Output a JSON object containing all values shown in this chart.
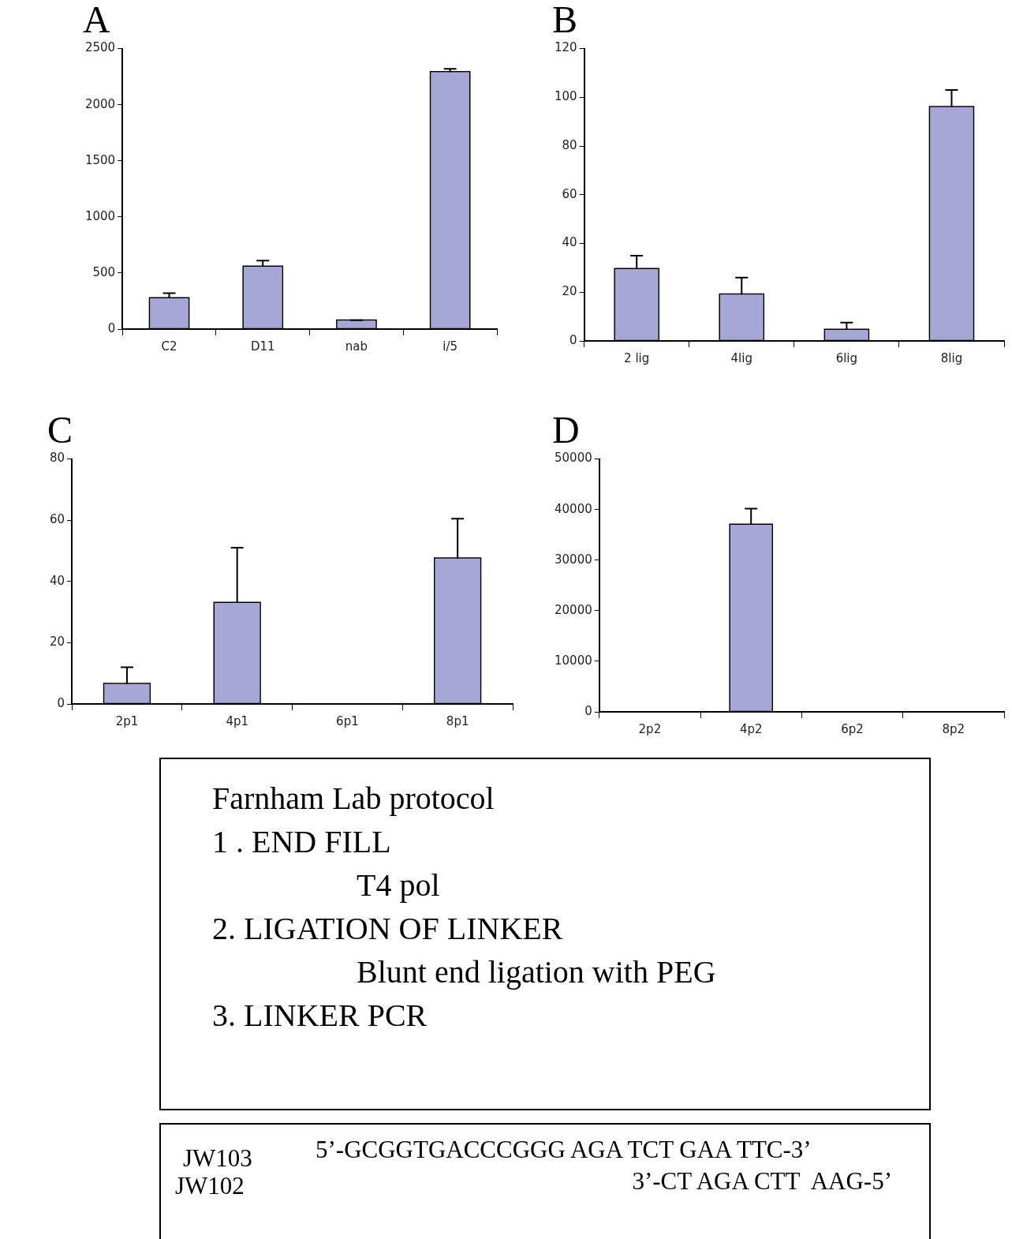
{
  "chart_data": [
    {
      "type": "bar",
      "title": "A",
      "categories": [
        "C2",
        "D11",
        "nab",
        "i/5"
      ],
      "values": [
        275,
        555,
        75,
        2290
      ],
      "errors": [
        [
          275,
          320
        ],
        [
          555,
          610
        ],
        [
          75,
          80
        ],
        [
          2290,
          2320
        ]
      ],
      "color": "#a5a8d6",
      "ylim": [
        0,
        2500
      ],
      "yticks": [
        0,
        500,
        1000,
        1500,
        2000,
        2500
      ]
    },
    {
      "type": "bar",
      "title": "B",
      "categories": [
        "2 lig",
        "4lig",
        "6lig",
        "8lig"
      ],
      "values": [
        29.5,
        19,
        4.5,
        96
      ],
      "errors": [
        [
          29.5,
          35
        ],
        [
          19,
          26
        ],
        [
          4.5,
          7.5
        ],
        [
          96,
          103
        ]
      ],
      "color": "#a5a8d6",
      "ylim": [
        0,
        120
      ],
      "yticks": [
        0,
        20,
        40,
        60,
        80,
        100,
        120
      ]
    },
    {
      "type": "bar",
      "title": "C",
      "categories": [
        "2p1",
        "4p1",
        "6p1",
        "8p1"
      ],
      "values": [
        6.5,
        33,
        0,
        47.5
      ],
      "errors": [
        [
          6.5,
          12
        ],
        [
          33,
          51
        ],
        null,
        [
          47.5,
          60.5
        ]
      ],
      "color": "#a5a8d6",
      "ylim": [
        0,
        80
      ],
      "yticks": [
        0,
        20,
        40,
        60,
        80
      ]
    },
    {
      "type": "bar",
      "title": "D",
      "categories": [
        "2p2",
        "4p2",
        "6p2",
        "8p2"
      ],
      "values": [
        0,
        37000,
        0,
        0
      ],
      "errors": [
        null,
        [
          37000,
          40200
        ],
        null,
        null
      ],
      "color": "#a5a8d6",
      "ylim": [
        0,
        50000
      ],
      "yticks": [
        0,
        10000,
        20000,
        30000,
        40000,
        50000
      ]
    },
    {
      "type": "other",
      "annotations": [
        "Farnham Lab protocol",
        "1 . END FILL",
        "T4 pol",
        "2. LIGATION OF LINKER",
        "Blunt end ligation with PEG",
        "3. LINKER PCR"
      ]
    },
    {
      "type": "other",
      "annotations": [
        "JW103",
        "JW102",
        "5’-GCGGTGACCCGGG AGA TCT GAA TTC-3’",
        "3’-CT AGA CTT  AAG-5’"
      ]
    }
  ]
}
